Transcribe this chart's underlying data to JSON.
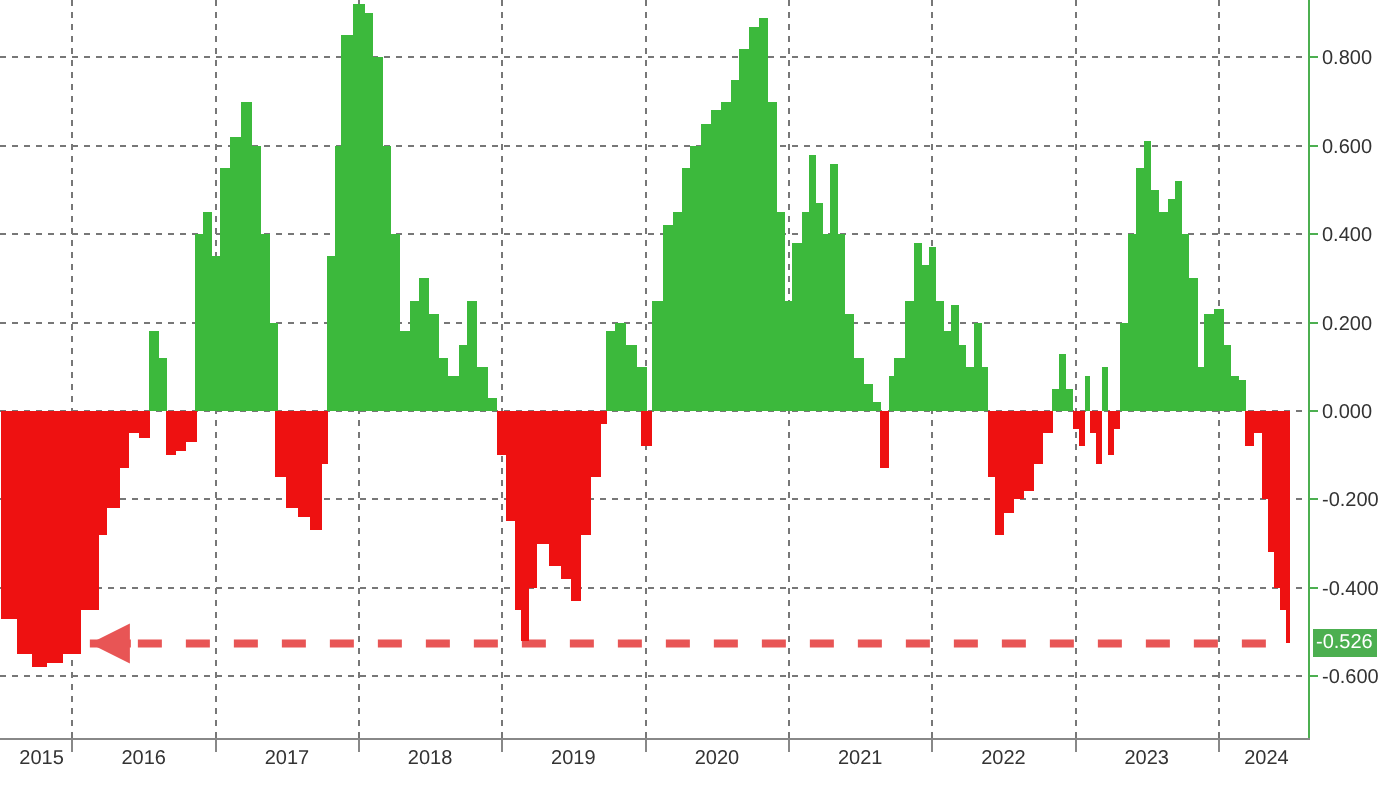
{
  "chart_data": {
    "type": "bar",
    "x": [
      "2015-07-24",
      "2015-09-03",
      "2015-10-09",
      "2015-11-15",
      "2016-01-01",
      "2016-02-15",
      "2016-03-15",
      "2016-04-15",
      "2016-05-12",
      "2016-06-07",
      "2016-07-03",
      "2016-07-28",
      "2016-08-18",
      "2016-09-08",
      "2016-10-04",
      "2016-11-01",
      "2016-11-19",
      "2016-12-10",
      "2017-01-01",
      "2017-01-25",
      "2017-02-19",
      "2017-03-19",
      "2017-04-13",
      "2017-05-07",
      "2017-05-28",
      "2017-06-15",
      "2017-07-15",
      "2017-08-15",
      "2017-09-13",
      "2017-10-04",
      "2017-10-22",
      "2017-11-12",
      "2017-12-01",
      "2018-01-01",
      "2018-01-25",
      "2018-02-19",
      "2018-03-13",
      "2018-04-03",
      "2018-04-28",
      "2018-05-22",
      "2018-06-15",
      "2018-07-10",
      "2018-08-04",
      "2018-08-28",
      "2018-09-28",
      "2018-10-16",
      "2018-11-12",
      "2018-12-07",
      "2019-01-01",
      "2019-01-22",
      "2019-02-12",
      "2019-02-28",
      "2019-03-19",
      "2019-04-13",
      "2019-05-15",
      "2019-06-15",
      "2019-07-07",
      "2019-08-01",
      "2019-08-28",
      "2019-09-13",
      "2019-10-04",
      "2019-10-28",
      "2019-11-25",
      "2019-12-22",
      "2020-01-04",
      "2020-01-31",
      "2020-02-28",
      "2020-03-22",
      "2020-04-15",
      "2020-05-07",
      "2020-06-04",
      "2020-06-28",
      "2020-07-25",
      "2020-08-18",
      "2020-09-08",
      "2020-10-04",
      "2020-10-28",
      "2020-11-19",
      "2020-12-10",
      "2021-01-01",
      "2021-01-20",
      "2021-02-15",
      "2021-03-01",
      "2021-03-19",
      "2021-04-03",
      "2021-04-25",
      "2021-05-12",
      "2021-06-04",
      "2021-06-28",
      "2021-07-22",
      "2021-08-12",
      "2021-09-01",
      "2021-09-22",
      "2021-10-10",
      "2021-11-07",
      "2021-11-25",
      "2021-12-16",
      "2022-01-01",
      "2022-01-19",
      "2022-02-10",
      "2022-02-28",
      "2022-03-19",
      "2022-04-07",
      "2022-04-28",
      "2022-05-15",
      "2022-06-01",
      "2022-06-22",
      "2022-07-15",
      "2022-08-10",
      "2022-09-04",
      "2022-09-28",
      "2022-10-22",
      "2022-11-12",
      "2022-11-28",
      "2022-12-16",
      "2023-01-01",
      "2023-01-16",
      "2023-01-31",
      "2023-02-15",
      "2023-03-01",
      "2023-03-16",
      "2023-04-01",
      "2023-04-15",
      "2023-05-04",
      "2023-05-25",
      "2023-06-13",
      "2023-07-03",
      "2023-07-22",
      "2023-08-12",
      "2023-09-04",
      "2023-09-19",
      "2023-10-07",
      "2023-10-28",
      "2023-11-16",
      "2023-12-07",
      "2024-01-01",
      "2024-01-22",
      "2024-02-10",
      "2024-03-01",
      "2024-03-19",
      "2024-04-10",
      "2024-04-28",
      "2024-05-13",
      "2024-05-28",
      "2024-06-13",
      "2024-06-25"
    ],
    "values": [
      -0.47,
      -0.55,
      -0.58,
      -0.57,
      -0.55,
      -0.45,
      -0.28,
      -0.22,
      -0.13,
      -0.05,
      -0.06,
      0.18,
      0.12,
      -0.1,
      -0.09,
      -0.07,
      0.4,
      0.45,
      0.35,
      0.55,
      0.62,
      0.7,
      0.6,
      0.4,
      0.2,
      -0.15,
      -0.22,
      -0.24,
      -0.27,
      -0.12,
      0.35,
      0.6,
      0.85,
      0.92,
      0.9,
      0.8,
      0.6,
      0.4,
      0.18,
      0.25,
      0.3,
      0.22,
      0.12,
      0.08,
      0.15,
      0.25,
      0.1,
      0.03,
      -0.1,
      -0.25,
      -0.45,
      -0.52,
      -0.4,
      -0.3,
      -0.35,
      -0.38,
      -0.43,
      -0.28,
      -0.15,
      -0.03,
      0.18,
      0.2,
      0.15,
      0.1,
      -0.08,
      0.25,
      0.42,
      0.45,
      0.55,
      0.6,
      0.65,
      0.68,
      0.7,
      0.75,
      0.82,
      0.87,
      0.89,
      0.7,
      0.45,
      0.25,
      0.38,
      0.45,
      0.58,
      0.47,
      0.4,
      0.56,
      0.4,
      0.22,
      0.12,
      0.06,
      0.02,
      -0.13,
      0.08,
      0.12,
      0.25,
      0.38,
      0.33,
      0.37,
      0.25,
      0.18,
      0.24,
      0.15,
      0.1,
      0.2,
      0.1,
      -0.15,
      -0.28,
      -0.23,
      -0.2,
      -0.18,
      -0.12,
      -0.05,
      0.05,
      0.13,
      0.05,
      -0.04,
      -0.08,
      0.08,
      -0.05,
      -0.12,
      0.1,
      -0.1,
      -0.04,
      0.2,
      0.4,
      0.55,
      0.61,
      0.5,
      0.45,
      0.48,
      0.52,
      0.4,
      0.3,
      0.1,
      0.22,
      0.23,
      0.15,
      0.08,
      0.07,
      -0.08,
      -0.05,
      -0.2,
      -0.32,
      -0.4,
      -0.45,
      -0.526
    ],
    "colors": [
      "#ee1111",
      "#ee1111",
      "#ee1111",
      "#ee1111",
      "#ee1111",
      "#ee1111",
      "#ee1111",
      "#ee1111",
      "#ee1111",
      "#ee1111",
      "#ee1111",
      "#3cb93c",
      "#3cb93c",
      "#ee1111",
      "#ee1111",
      "#ee1111",
      "#3cb93c",
      "#3cb93c",
      "#3cb93c",
      "#3cb93c",
      "#3cb93c",
      "#3cb93c",
      "#3cb93c",
      "#3cb93c",
      "#3cb93c",
      "#ee1111",
      "#ee1111",
      "#ee1111",
      "#ee1111",
      "#ee1111",
      "#3cb93c",
      "#3cb93c",
      "#3cb93c",
      "#3cb93c",
      "#3cb93c",
      "#3cb93c",
      "#3cb93c",
      "#3cb93c",
      "#3cb93c",
      "#3cb93c",
      "#3cb93c",
      "#3cb93c",
      "#3cb93c",
      "#3cb93c",
      "#3cb93c",
      "#3cb93c",
      "#3cb93c",
      "#3cb93c",
      "#ee1111",
      "#ee1111",
      "#ee1111",
      "#ee1111",
      "#ee1111",
      "#ee1111",
      "#ee1111",
      "#ee1111",
      "#ee1111",
      "#ee1111",
      "#ee1111",
      "#ee1111",
      "#3cb93c",
      "#3cb93c",
      "#3cb93c",
      "#3cb93c",
      "#ee1111",
      "#3cb93c",
      "#3cb93c",
      "#3cb93c",
      "#3cb93c",
      "#3cb93c",
      "#3cb93c",
      "#3cb93c",
      "#3cb93c",
      "#3cb93c",
      "#3cb93c",
      "#3cb93c",
      "#3cb93c",
      "#3cb93c",
      "#3cb93c",
      "#3cb93c",
      "#3cb93c",
      "#3cb93c",
      "#3cb93c",
      "#3cb93c",
      "#3cb93c",
      "#3cb93c",
      "#3cb93c",
      "#3cb93c",
      "#3cb93c",
      "#3cb93c",
      "#3cb93c",
      "#ee1111",
      "#3cb93c",
      "#3cb93c",
      "#3cb93c",
      "#3cb93c",
      "#3cb93c",
      "#3cb93c",
      "#3cb93c",
      "#3cb93c",
      "#3cb93c",
      "#3cb93c",
      "#3cb93c",
      "#3cb93c",
      "#3cb93c",
      "#ee1111",
      "#ee1111",
      "#ee1111",
      "#ee1111",
      "#ee1111",
      "#ee1111",
      "#ee1111",
      "#3cb93c",
      "#3cb93c",
      "#3cb93c",
      "#ee1111",
      "#ee1111",
      "#3cb93c",
      "#ee1111",
      "#ee1111",
      "#3cb93c",
      "#ee1111",
      "#ee1111",
      "#3cb93c",
      "#3cb93c",
      "#3cb93c",
      "#3cb93c",
      "#3cb93c",
      "#3cb93c",
      "#3cb93c",
      "#3cb93c",
      "#3cb93c",
      "#3cb93c",
      "#3cb93c",
      "#3cb93c",
      "#3cb93c",
      "#3cb93c",
      "#3cb93c",
      "#3cb93c",
      "#ee1111",
      "#ee1111",
      "#ee1111",
      "#ee1111",
      "#ee1111",
      "#ee1111",
      "#ee1111"
    ],
    "xlim": [
      "2015-07-01",
      "2024-08-15"
    ],
    "xticks": [
      {
        "value": "2015-10-15",
        "label": "2015"
      },
      {
        "value": "2016-01-01",
        "label": null
      },
      {
        "value": "2016-07-01",
        "label": "2016"
      },
      {
        "value": "2017-01-01",
        "label": null
      },
      {
        "value": "2017-07-01",
        "label": "2017"
      },
      {
        "value": "2018-01-01",
        "label": null
      },
      {
        "value": "2018-07-01",
        "label": "2018"
      },
      {
        "value": "2019-01-01",
        "label": null
      },
      {
        "value": "2019-07-01",
        "label": "2019"
      },
      {
        "value": "2020-01-01",
        "label": null
      },
      {
        "value": "2020-07-01",
        "label": "2020"
      },
      {
        "value": "2021-01-01",
        "label": null
      },
      {
        "value": "2021-07-01",
        "label": "2021"
      },
      {
        "value": "2022-01-01",
        "label": null
      },
      {
        "value": "2022-07-01",
        "label": "2022"
      },
      {
        "value": "2023-01-01",
        "label": null
      },
      {
        "value": "2023-07-01",
        "label": "2023"
      },
      {
        "value": "2024-01-01",
        "label": null
      },
      {
        "value": "2024-05-01",
        "label": "2024"
      }
    ],
    "ylim": [
      -0.74,
      0.93
    ],
    "yticks": [
      {
        "value": -0.6,
        "label": "-0.600"
      },
      {
        "value": -0.4,
        "label": "-0.400"
      },
      {
        "value": -0.2,
        "label": "-0.200"
      },
      {
        "value": 0,
        "label": "0.000"
      },
      {
        "value": 0.2,
        "label": "0.200"
      },
      {
        "value": 0.4,
        "label": "0.400"
      },
      {
        "value": 0.6,
        "label": "0.600"
      },
      {
        "value": 0.8,
        "label": "0.800"
      }
    ],
    "ref_lines": [
      {
        "axis": "y",
        "value": -0.526,
        "label": "-0.526",
        "color": "#e85555",
        "line_style": "dashed"
      }
    ],
    "grid": true
  }
}
